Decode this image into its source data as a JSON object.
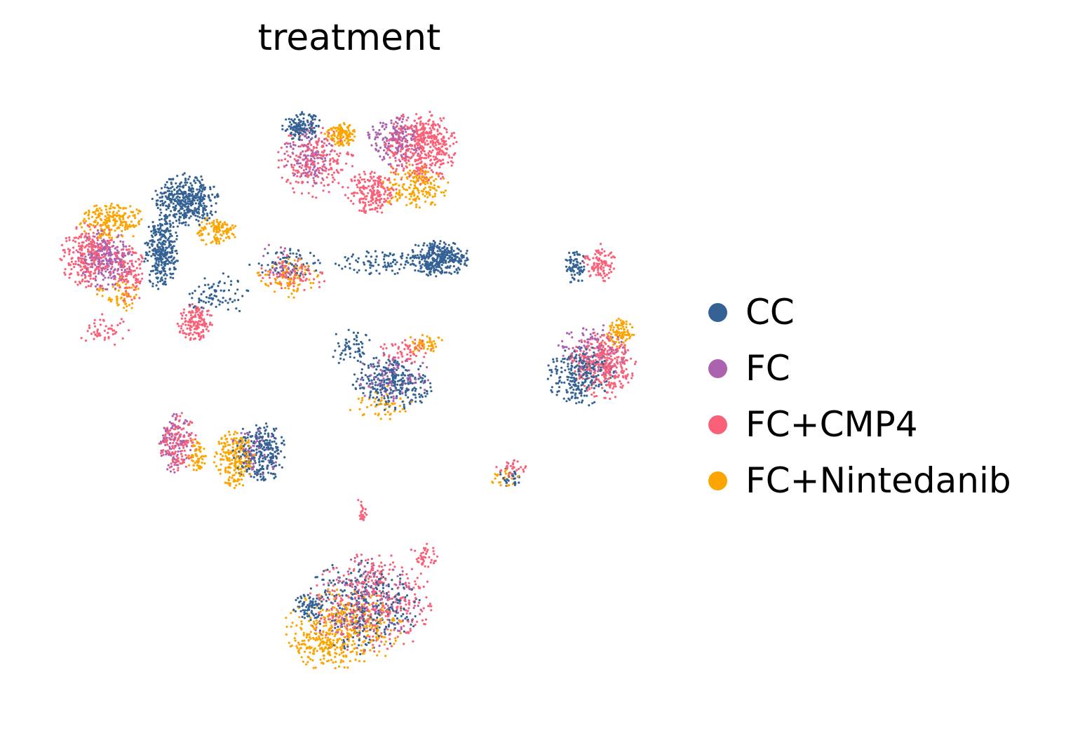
{
  "chart_data": {
    "type": "scatter",
    "title": "treatment",
    "xlabel": "",
    "ylabel": "",
    "axes_visible": false,
    "grid": false,
    "legend_position": "right",
    "legend": [
      {
        "name": "CC",
        "color": "#356294"
      },
      {
        "name": "FC",
        "color": "#ab62af"
      },
      {
        "name": "FC+CMP4",
        "color": "#fa6077"
      },
      {
        "name": "FC+Nintedanib",
        "color": "#fca400"
      }
    ],
    "series": [
      {
        "name": "CC",
        "color": "#356294",
        "clusters": [
          {
            "cx": 265,
            "cy": 285,
            "rx": 48,
            "ry": 40,
            "n": 420
          },
          {
            "cx": 230,
            "cy": 360,
            "rx": 25,
            "ry": 55,
            "n": 320
          },
          {
            "cx": 430,
            "cy": 180,
            "rx": 28,
            "ry": 22,
            "n": 140
          },
          {
            "cx": 625,
            "cy": 368,
            "rx": 48,
            "ry": 26,
            "n": 340
          },
          {
            "cx": 560,
            "cy": 545,
            "rx": 58,
            "ry": 42,
            "n": 280
          },
          {
            "cx": 830,
            "cy": 535,
            "rx": 52,
            "ry": 45,
            "n": 260
          },
          {
            "cx": 820,
            "cy": 380,
            "rx": 16,
            "ry": 26,
            "n": 80
          },
          {
            "cx": 370,
            "cy": 645,
            "rx": 38,
            "ry": 45,
            "n": 260
          },
          {
            "cx": 515,
            "cy": 865,
            "rx": 85,
            "ry": 70,
            "n": 330
          },
          {
            "cx": 440,
            "cy": 865,
            "rx": 24,
            "ry": 18,
            "n": 60
          },
          {
            "cx": 410,
            "cy": 375,
            "rx": 55,
            "ry": 25,
            "n": 70
          },
          {
            "cx": 545,
            "cy": 375,
            "rx": 70,
            "ry": 18,
            "n": 90
          },
          {
            "cx": 500,
            "cy": 495,
            "rx": 30,
            "ry": 28,
            "n": 60
          },
          {
            "cx": 730,
            "cy": 680,
            "rx": 22,
            "ry": 15,
            "n": 30
          },
          {
            "cx": 310,
            "cy": 420,
            "rx": 45,
            "ry": 35,
            "n": 80
          }
        ]
      },
      {
        "name": "FC",
        "color": "#ab62af",
        "clusters": [
          {
            "cx": 150,
            "cy": 370,
            "rx": 40,
            "ry": 45,
            "n": 240
          },
          {
            "cx": 565,
            "cy": 200,
            "rx": 42,
            "ry": 38,
            "n": 180
          },
          {
            "cx": 440,
            "cy": 220,
            "rx": 38,
            "ry": 45,
            "n": 120
          },
          {
            "cx": 250,
            "cy": 630,
            "rx": 25,
            "ry": 45,
            "n": 100
          },
          {
            "cx": 845,
            "cy": 500,
            "rx": 50,
            "ry": 40,
            "n": 110
          },
          {
            "cx": 560,
            "cy": 540,
            "rx": 55,
            "ry": 40,
            "n": 90
          },
          {
            "cx": 520,
            "cy": 860,
            "rx": 85,
            "ry": 70,
            "n": 160
          },
          {
            "cx": 400,
            "cy": 375,
            "rx": 40,
            "ry": 30,
            "n": 40
          },
          {
            "cx": 365,
            "cy": 640,
            "rx": 35,
            "ry": 40,
            "n": 60
          }
        ]
      },
      {
        "name": "FC+CMP4",
        "color": "#fa6077",
        "clusters": [
          {
            "cx": 130,
            "cy": 365,
            "rx": 45,
            "ry": 50,
            "n": 280
          },
          {
            "cx": 185,
            "cy": 390,
            "rx": 22,
            "ry": 45,
            "n": 120
          },
          {
            "cx": 600,
            "cy": 210,
            "rx": 52,
            "ry": 55,
            "n": 460
          },
          {
            "cx": 530,
            "cy": 275,
            "rx": 38,
            "ry": 32,
            "n": 200
          },
          {
            "cx": 278,
            "cy": 460,
            "rx": 26,
            "ry": 28,
            "n": 150
          },
          {
            "cx": 450,
            "cy": 230,
            "rx": 55,
            "ry": 55,
            "n": 220
          },
          {
            "cx": 860,
            "cy": 520,
            "rx": 48,
            "ry": 50,
            "n": 330
          },
          {
            "cx": 855,
            "cy": 375,
            "rx": 25,
            "ry": 28,
            "n": 100
          },
          {
            "cx": 255,
            "cy": 630,
            "rx": 28,
            "ry": 42,
            "n": 140
          },
          {
            "cx": 530,
            "cy": 860,
            "rx": 90,
            "ry": 75,
            "n": 360
          },
          {
            "cx": 515,
            "cy": 730,
            "rx": 10,
            "ry": 20,
            "n": 25
          },
          {
            "cx": 605,
            "cy": 790,
            "rx": 20,
            "ry": 20,
            "n": 40
          },
          {
            "cx": 420,
            "cy": 390,
            "rx": 50,
            "ry": 28,
            "n": 80
          },
          {
            "cx": 580,
            "cy": 500,
            "rx": 40,
            "ry": 18,
            "n": 60
          },
          {
            "cx": 150,
            "cy": 470,
            "rx": 40,
            "ry": 25,
            "n": 50
          },
          {
            "cx": 730,
            "cy": 668,
            "rx": 25,
            "ry": 14,
            "n": 30
          }
        ]
      },
      {
        "name": "FC+Nintedanib",
        "color": "#fca400",
        "clusters": [
          {
            "cx": 160,
            "cy": 315,
            "rx": 48,
            "ry": 28,
            "n": 210
          },
          {
            "cx": 485,
            "cy": 192,
            "rx": 22,
            "ry": 18,
            "n": 120
          },
          {
            "cx": 590,
            "cy": 265,
            "rx": 50,
            "ry": 35,
            "n": 170
          },
          {
            "cx": 310,
            "cy": 330,
            "rx": 30,
            "ry": 22,
            "n": 120
          },
          {
            "cx": 335,
            "cy": 655,
            "rx": 30,
            "ry": 42,
            "n": 220
          },
          {
            "cx": 280,
            "cy": 650,
            "rx": 16,
            "ry": 25,
            "n": 60
          },
          {
            "cx": 885,
            "cy": 475,
            "rx": 20,
            "ry": 22,
            "n": 90
          },
          {
            "cx": 605,
            "cy": 490,
            "rx": 28,
            "ry": 14,
            "n": 50
          },
          {
            "cx": 490,
            "cy": 895,
            "rx": 85,
            "ry": 60,
            "n": 330
          },
          {
            "cx": 460,
            "cy": 925,
            "rx": 50,
            "ry": 30,
            "n": 120
          },
          {
            "cx": 410,
            "cy": 395,
            "rx": 45,
            "ry": 30,
            "n": 90
          },
          {
            "cx": 170,
            "cy": 420,
            "rx": 35,
            "ry": 25,
            "n": 60
          },
          {
            "cx": 545,
            "cy": 575,
            "rx": 50,
            "ry": 25,
            "n": 50
          },
          {
            "cx": 720,
            "cy": 682,
            "rx": 22,
            "ry": 14,
            "n": 25
          }
        ]
      }
    ]
  }
}
